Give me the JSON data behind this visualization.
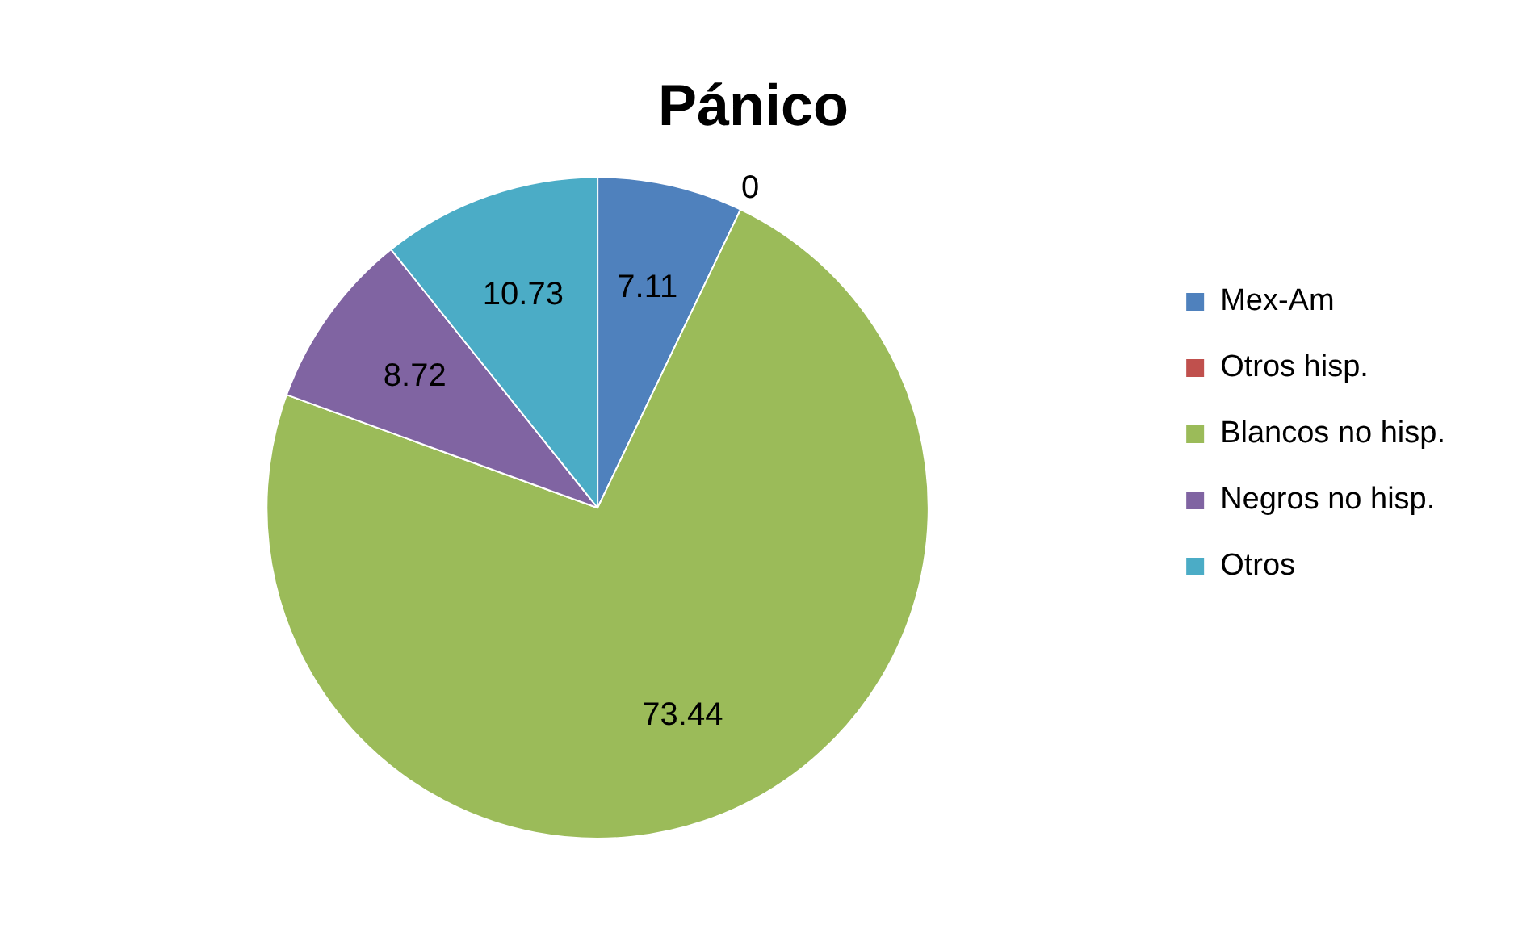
{
  "chart_data": {
    "type": "pie",
    "title": "Pánico",
    "categories": [
      "Mex-Am",
      "Otros hisp.",
      "Blancos no hisp.",
      "Negros no hisp.",
      "Otros"
    ],
    "values": [
      7.11,
      0,
      73.44,
      8.72,
      10.73
    ],
    "value_labels": [
      "7.11",
      "0",
      "73.44",
      "8.72",
      "10.73"
    ],
    "colors": [
      "#4f81bd",
      "#c0504d",
      "#9bbb59",
      "#8064a2",
      "#4bacc6"
    ],
    "legend": "right"
  }
}
